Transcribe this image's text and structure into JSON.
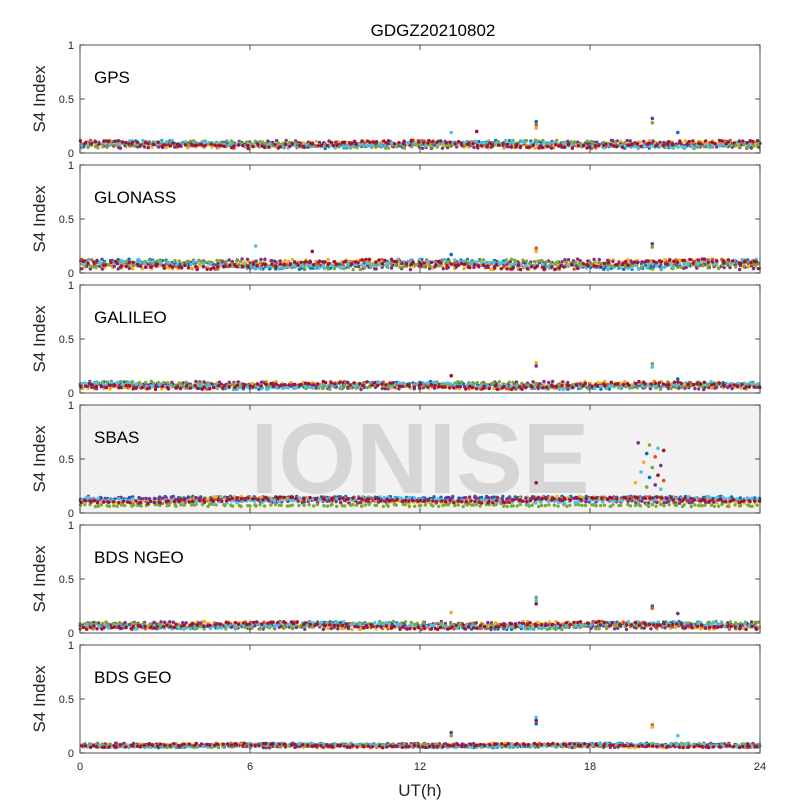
{
  "chart_data": {
    "type": "scatter",
    "title": "GDGZ20210802",
    "xlabel": "UT(h)",
    "ylabel": "S4 Index",
    "xlim": [
      0,
      24
    ],
    "ylim": [
      0,
      1
    ],
    "xticks": [
      0,
      6,
      12,
      18,
      24
    ],
    "yticks": [
      0,
      0.5,
      1
    ],
    "ytick_labels": [
      "0",
      "0.5",
      "1"
    ],
    "grid": false,
    "watermark": "IONISE",
    "series_colors": [
      "#0072bd",
      "#d95319",
      "#edb120",
      "#7e2f8e",
      "#77ac30",
      "#4dbeee",
      "#a2142f"
    ],
    "panels": [
      {
        "name": "GPS",
        "baseline": 0.08,
        "noise": 0.035,
        "spikes": [
          {
            "x": 16.1,
            "y": 0.29
          },
          {
            "x": 16.1,
            "y": 0.26
          },
          {
            "x": 16.1,
            "y": 0.23
          },
          {
            "x": 20.2,
            "y": 0.32
          },
          {
            "x": 20.2,
            "y": 0.28
          },
          {
            "x": 13.1,
            "y": 0.19
          },
          {
            "x": 14.0,
            "y": 0.2
          },
          {
            "x": 21.1,
            "y": 0.19
          }
        ]
      },
      {
        "name": "GLONASS",
        "baseline": 0.08,
        "noise": 0.045,
        "spikes": [
          {
            "x": 16.1,
            "y": 0.23
          },
          {
            "x": 16.1,
            "y": 0.2
          },
          {
            "x": 20.2,
            "y": 0.27
          },
          {
            "x": 20.2,
            "y": 0.24
          },
          {
            "x": 6.2,
            "y": 0.25
          },
          {
            "x": 8.2,
            "y": 0.2
          },
          {
            "x": 13.1,
            "y": 0.17
          }
        ]
      },
      {
        "name": "GALILEO",
        "baseline": 0.07,
        "noise": 0.035,
        "spikes": [
          {
            "x": 16.1,
            "y": 0.28
          },
          {
            "x": 16.1,
            "y": 0.25
          },
          {
            "x": 20.2,
            "y": 0.27
          },
          {
            "x": 20.2,
            "y": 0.24
          },
          {
            "x": 13.1,
            "y": 0.16
          },
          {
            "x": 21.1,
            "y": 0.13
          }
        ]
      },
      {
        "name": "SBAS",
        "baseline": 0.12,
        "noise": 0.03,
        "spikes": [
          {
            "x": 19.7,
            "y": 0.65
          },
          {
            "x": 20.1,
            "y": 0.63
          },
          {
            "x": 20.4,
            "y": 0.6
          },
          {
            "x": 20.6,
            "y": 0.58
          },
          {
            "x": 20.0,
            "y": 0.55
          },
          {
            "x": 20.3,
            "y": 0.52
          },
          {
            "x": 19.9,
            "y": 0.47
          },
          {
            "x": 20.5,
            "y": 0.44
          },
          {
            "x": 20.2,
            "y": 0.42
          },
          {
            "x": 19.8,
            "y": 0.38
          },
          {
            "x": 20.4,
            "y": 0.35
          },
          {
            "x": 20.1,
            "y": 0.33
          },
          {
            "x": 20.6,
            "y": 0.3
          },
          {
            "x": 19.6,
            "y": 0.28
          },
          {
            "x": 20.3,
            "y": 0.26
          },
          {
            "x": 20.0,
            "y": 0.24
          },
          {
            "x": 20.5,
            "y": 0.22
          },
          {
            "x": 16.1,
            "y": 0.28
          }
        ]
      },
      {
        "name": "BDS NGEO",
        "baseline": 0.07,
        "noise": 0.035,
        "spikes": [
          {
            "x": 16.1,
            "y": 0.33
          },
          {
            "x": 16.1,
            "y": 0.3
          },
          {
            "x": 16.1,
            "y": 0.27
          },
          {
            "x": 20.2,
            "y": 0.25
          },
          {
            "x": 20.2,
            "y": 0.23
          },
          {
            "x": 13.1,
            "y": 0.19
          },
          {
            "x": 21.1,
            "y": 0.18
          }
        ]
      },
      {
        "name": "BDS GEO",
        "baseline": 0.07,
        "noise": 0.02,
        "spikes": [
          {
            "x": 16.1,
            "y": 0.33
          },
          {
            "x": 16.1,
            "y": 0.3
          },
          {
            "x": 16.1,
            "y": 0.27
          },
          {
            "x": 20.2,
            "y": 0.26
          },
          {
            "x": 20.2,
            "y": 0.24
          },
          {
            "x": 13.1,
            "y": 0.19
          },
          {
            "x": 13.1,
            "y": 0.16
          },
          {
            "x": 21.1,
            "y": 0.16
          }
        ]
      }
    ]
  }
}
